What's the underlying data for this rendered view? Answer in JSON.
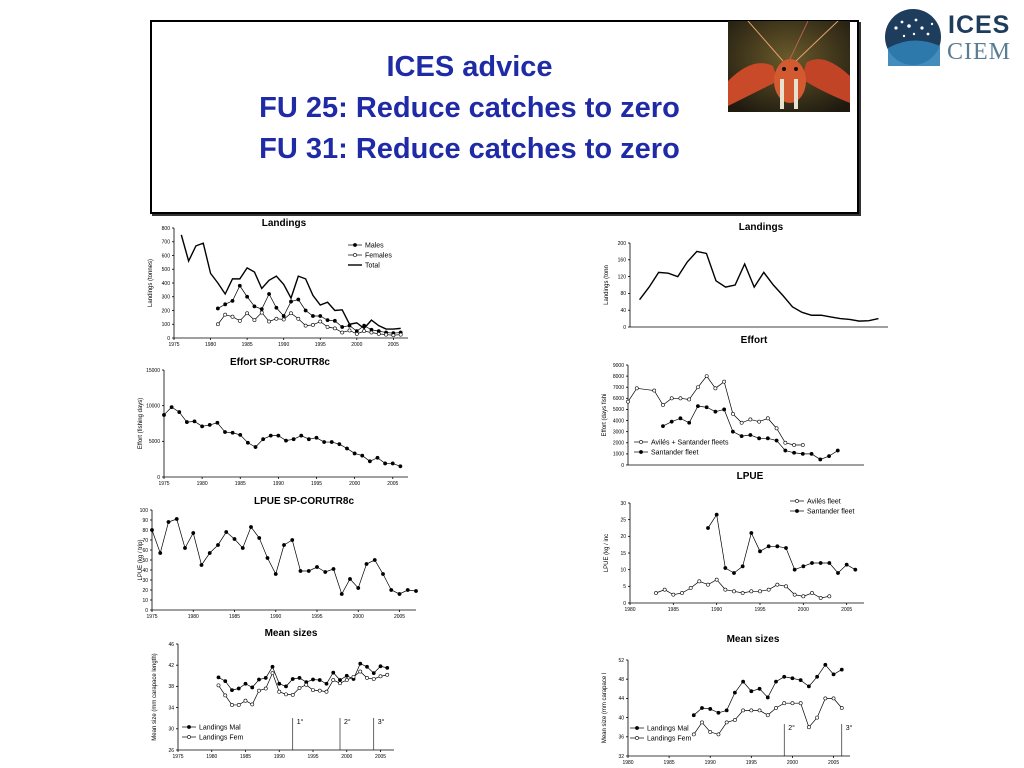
{
  "header": {
    "title_lines": [
      "ICES advice",
      "FU 25: Reduce catches to zero",
      "FU 31: Reduce catches to zero"
    ],
    "logo_top": "ICES",
    "logo_bottom": "CIEM",
    "colors": {
      "title": "#1f2aa6",
      "logo_dark": "#1e3c5c",
      "logo_light": "#5a7d94"
    }
  },
  "chart_data": [
    {
      "id": "landings-fu25",
      "type": "line",
      "title": "Landings",
      "ylabel": "Landings (tonnes)",
      "xlim": [
        1975,
        2007
      ],
      "ylim": [
        0,
        800
      ],
      "xticks": [
        1975,
        1980,
        1985,
        1990,
        1995,
        2000,
        2005
      ],
      "yticks": [
        0,
        100,
        200,
        300,
        400,
        500,
        600,
        700,
        800
      ],
      "legend": "top-right",
      "series": [
        {
          "name": "Males",
          "marker": "filled",
          "line": "thin",
          "x": [
            1981,
            1982,
            1983,
            1984,
            1985,
            1986,
            1987,
            1988,
            1989,
            1990,
            1991,
            1992,
            1993,
            1994,
            1995,
            1996,
            1997,
            1998,
            1999,
            2000,
            2001,
            2002,
            2003,
            2004,
            2005,
            2006
          ],
          "y": [
            215,
            245,
            270,
            380,
            300,
            230,
            210,
            320,
            220,
            160,
            265,
            280,
            200,
            160,
            160,
            130,
            125,
            80,
            90,
            50,
            90,
            60,
            50,
            40,
            35,
            40
          ]
        },
        {
          "name": "Females",
          "marker": "open",
          "line": "thin",
          "x": [
            1981,
            1982,
            1983,
            1984,
            1985,
            1986,
            1987,
            1988,
            1989,
            1990,
            1991,
            1992,
            1993,
            1994,
            1995,
            1996,
            1997,
            1998,
            1999,
            2000,
            2001,
            2002,
            2003,
            2004,
            2005,
            2006
          ],
          "y": [
            100,
            170,
            155,
            125,
            180,
            130,
            185,
            120,
            140,
            135,
            180,
            140,
            90,
            95,
            120,
            80,
            70,
            40,
            55,
            30,
            50,
            40,
            30,
            25,
            20,
            25
          ]
        },
        {
          "name": "Total",
          "marker": "none",
          "line": "thick",
          "x": [
            1976,
            1977,
            1978,
            1979,
            1980,
            1981,
            1982,
            1983,
            1984,
            1985,
            1986,
            1987,
            1988,
            1989,
            1990,
            1991,
            1992,
            1993,
            1994,
            1995,
            1996,
            1997,
            1998,
            1999,
            2000,
            2001,
            2002,
            2003,
            2004,
            2005,
            2006
          ],
          "y": [
            750,
            560,
            670,
            690,
            470,
            400,
            320,
            430,
            430,
            510,
            480,
            360,
            420,
            450,
            390,
            290,
            450,
            430,
            310,
            240,
            260,
            200,
            205,
            100,
            110,
            70,
            130,
            90,
            65,
            65,
            70
          ]
        }
      ]
    },
    {
      "id": "effort-fu25",
      "type": "line",
      "title": "Effort  SP-CORUTR8c",
      "ylabel": "Effort (fishing days)",
      "xlim": [
        1975,
        2007
      ],
      "ylim": [
        0,
        15000
      ],
      "xticks": [
        1975,
        1980,
        1985,
        1990,
        1995,
        2000,
        2005
      ],
      "yticks": [
        0,
        5000,
        10000,
        15000
      ],
      "series": [
        {
          "name": "",
          "marker": "filled",
          "line": "thin",
          "x": [
            1975,
            1976,
            1977,
            1978,
            1979,
            1980,
            1981,
            1982,
            1983,
            1984,
            1985,
            1986,
            1987,
            1988,
            1989,
            1990,
            1991,
            1992,
            1993,
            1994,
            1995,
            1996,
            1997,
            1998,
            1999,
            2000,
            2001,
            2002,
            2003,
            2004,
            2005,
            2006
          ],
          "y": [
            8700,
            9800,
            9100,
            7700,
            7800,
            7100,
            7300,
            7600,
            6300,
            6200,
            5900,
            4800,
            4200,
            5300,
            5800,
            5800,
            5100,
            5300,
            5800,
            5300,
            5500,
            4900,
            4900,
            4600,
            4000,
            3300,
            3000,
            2200,
            2700,
            1900,
            1900,
            1500
          ]
        }
      ]
    },
    {
      "id": "lpue-fu25",
      "type": "line",
      "title": "LPUE  SP-CORUTR8c",
      "ylabel": "LPUE (kg / trip)",
      "xlim": [
        1975,
        2007
      ],
      "ylim": [
        0,
        100
      ],
      "xticks": [
        1975,
        1980,
        1985,
        1990,
        1995,
        2000,
        2005
      ],
      "yticks": [
        0,
        10,
        20,
        30,
        40,
        50,
        60,
        70,
        80,
        90,
        100
      ],
      "series": [
        {
          "name": "",
          "marker": "filled",
          "line": "thin",
          "x": [
            1975,
            1976,
            1977,
            1978,
            1979,
            1980,
            1981,
            1982,
            1983,
            1984,
            1985,
            1986,
            1987,
            1988,
            1989,
            1990,
            1991,
            1992,
            1993,
            1994,
            1995,
            1996,
            1997,
            1998,
            1999,
            2000,
            2001,
            2002,
            2003,
            2004,
            2005,
            2006,
            2007
          ],
          "y": [
            80,
            57,
            88,
            91,
            62,
            77,
            45,
            57,
            65,
            78,
            71,
            62,
            83,
            72,
            52,
            36,
            65,
            70,
            39,
            39,
            43,
            38,
            41,
            16,
            31,
            22,
            46,
            50,
            36,
            20,
            16,
            20,
            19
          ]
        }
      ]
    },
    {
      "id": "sizes-fu25",
      "type": "line",
      "title": "Mean sizes",
      "ylabel": "Mean size (mm carapace length)",
      "xlim": [
        1975,
        2007
      ],
      "ylim": [
        26,
        46
      ],
      "xticks": [
        1975,
        1980,
        1985,
        1990,
        1995,
        2000,
        2005
      ],
      "yticks": [
        26,
        30,
        34,
        38,
        42,
        46
      ],
      "legend": "bottom-left",
      "annotations": [
        {
          "x": 1992,
          "text": "1°"
        },
        {
          "x": 1999,
          "text": "2°"
        },
        {
          "x": 2004,
          "text": "3°"
        }
      ],
      "series": [
        {
          "name": "Landings Mal",
          "marker": "filled",
          "line": "thin",
          "x": [
            1981,
            1982,
            1983,
            1984,
            1985,
            1986,
            1987,
            1988,
            1989,
            1990,
            1991,
            1992,
            1993,
            1994,
            1995,
            1996,
            1997,
            1998,
            1999,
            2000,
            2001,
            2002,
            2003,
            2004,
            2005,
            2006
          ],
          "y": [
            39.7,
            39,
            37.3,
            37.6,
            38.5,
            37.8,
            39.3,
            39.6,
            41.7,
            38.5,
            38,
            39.4,
            39.6,
            38.8,
            39.3,
            39.2,
            38.5,
            40.6,
            39.2,
            40,
            39.4,
            42.3,
            41.7,
            40.5,
            41.8,
            41.5
          ]
        },
        {
          "name": "Landings Fem",
          "marker": "open",
          "line": "thin",
          "x": [
            1981,
            1982,
            1983,
            1984,
            1985,
            1986,
            1987,
            1988,
            1989,
            1990,
            1991,
            1992,
            1993,
            1994,
            1995,
            1996,
            1997,
            1998,
            1999,
            2000,
            2001,
            2002,
            2003,
            2004,
            2005,
            2006
          ],
          "y": [
            38.2,
            36.3,
            34.5,
            34.5,
            35.3,
            34.6,
            37.2,
            37.6,
            40.5,
            37,
            36.5,
            36.4,
            37.7,
            38.3,
            37.3,
            37.2,
            37,
            39.2,
            38.6,
            39.2,
            39.8,
            40.8,
            39.6,
            39.4,
            39.9,
            40.2
          ]
        }
      ]
    },
    {
      "id": "landings-fu31",
      "type": "line",
      "title": "Landings",
      "ylabel": "Landings (tonn",
      "xlim": [
        1983,
        2010
      ],
      "ylim": [
        0,
        200
      ],
      "xticks": [],
      "yticks": [
        0,
        40,
        80,
        120,
        160,
        200
      ],
      "series": [
        {
          "name": "",
          "marker": "none",
          "line": "thick",
          "x": [
            1984,
            1985,
            1986,
            1987,
            1988,
            1989,
            1990,
            1991,
            1992,
            1993,
            1994,
            1995,
            1996,
            1997,
            1998,
            1999,
            2000,
            2001,
            2002,
            2003,
            2004,
            2005,
            2006,
            2007,
            2008,
            2009
          ],
          "y": [
            65,
            95,
            130,
            128,
            120,
            155,
            180,
            175,
            110,
            95,
            100,
            150,
            95,
            130,
            100,
            75,
            48,
            35,
            28,
            28,
            24,
            20,
            18,
            14,
            15,
            20
          ]
        }
      ]
    },
    {
      "id": "effort-fu31",
      "type": "line",
      "title": "Effort",
      "ylabel": "Effort (days fishi",
      "xlim": [
        1983,
        2010
      ],
      "ylim": [
        0,
        9000
      ],
      "xticks": [],
      "yticks": [
        0,
        1000,
        2000,
        3000,
        4000,
        5000,
        6000,
        7000,
        8000,
        9000
      ],
      "legend": "bottom-left",
      "series": [
        {
          "name": "Avilés + Santander fleets",
          "marker": "open",
          "line": "thin",
          "x": [
            1983,
            1984,
            1986,
            1987,
            1988,
            1989,
            1990,
            1991,
            1992,
            1993,
            1994,
            1995,
            1996,
            1997,
            1998,
            1999,
            2000,
            2001,
            2002,
            2003
          ],
          "y": [
            5700,
            6900,
            6700,
            5400,
            6000,
            6000,
            5900,
            7000,
            8000,
            6900,
            7500,
            4600,
            3800,
            4100,
            3900,
            4200,
            3300,
            2000,
            1800,
            1800
          ]
        },
        {
          "name": "Santander fleet",
          "marker": "filled",
          "line": "thin",
          "x": [
            1987,
            1988,
            1989,
            1990,
            1991,
            1992,
            1993,
            1994,
            1995,
            1996,
            1997,
            1998,
            1999,
            2000,
            2001,
            2002,
            2003,
            2004,
            2005,
            2006,
            2007
          ],
          "y": [
            3500,
            3900,
            4200,
            3800,
            5300,
            5200,
            4800,
            5000,
            3000,
            2600,
            2700,
            2400,
            2400,
            2200,
            1300,
            1100,
            1000,
            1000,
            500,
            800,
            1300
          ]
        }
      ]
    },
    {
      "id": "lpue-fu31",
      "type": "line",
      "title": "LPUE",
      "ylabel": "LPUE (kg / inc",
      "xlim": [
        1980,
        2007
      ],
      "ylim": [
        0,
        30
      ],
      "xticks": [
        1980,
        1985,
        1990,
        1995,
        2000,
        2005
      ],
      "yticks": [
        0,
        5,
        10,
        15,
        20,
        25,
        30
      ],
      "legend": "top-right",
      "series": [
        {
          "name": "Avilés fleet",
          "marker": "open",
          "line": "thin",
          "x": [
            1983,
            1984,
            1985,
            1986,
            1987,
            1988,
            1989,
            1990,
            1991,
            1992,
            1993,
            1994,
            1995,
            1996,
            1997,
            1998,
            1999,
            2000,
            2001,
            2002,
            2003
          ],
          "y": [
            3,
            4,
            2.5,
            3,
            4.5,
            6.5,
            5.5,
            7,
            4,
            3.5,
            3,
            3.5,
            3.5,
            4,
            5.5,
            5,
            2.5,
            2,
            3,
            1.5,
            2
          ]
        },
        {
          "name": "Santander fleet",
          "marker": "filled",
          "line": "thin",
          "x": [
            1989,
            1990,
            1991,
            1992,
            1993,
            1994,
            1995,
            1996,
            1997,
            1998,
            1999,
            2000,
            2001,
            2002,
            2003,
            2004,
            2005,
            2006
          ],
          "y": [
            22.5,
            26.5,
            10.5,
            9,
            11,
            21,
            15.5,
            17,
            17,
            16.5,
            10,
            11,
            12,
            12,
            12,
            9,
            11.5,
            10
          ]
        }
      ]
    },
    {
      "id": "sizes-fu31",
      "type": "line",
      "title": "Mean sizes",
      "ylabel": "Mean size (mm carapace l",
      "xlim": [
        1980,
        2007
      ],
      "ylim": [
        32,
        52
      ],
      "xticks": [
        1980,
        1985,
        1990,
        1995,
        2000,
        2005
      ],
      "yticks": [
        32,
        36,
        40,
        44,
        48,
        52
      ],
      "legend": "bottom-left",
      "annotations": [
        {
          "x": 1999,
          "text": "2°"
        },
        {
          "x": 2006,
          "text": "3°"
        }
      ],
      "series": [
        {
          "name": "Landings Mal",
          "marker": "filled",
          "line": "thin",
          "x": [
            1988,
            1989,
            1990,
            1991,
            1992,
            1993,
            1994,
            1995,
            1996,
            1997,
            1998,
            1999,
            2000,
            2001,
            2002,
            2003,
            2004,
            2005,
            2006
          ],
          "y": [
            40.5,
            42,
            41.8,
            41,
            41.5,
            45.2,
            47.5,
            45.5,
            46,
            44.2,
            47.5,
            48.5,
            48.2,
            47.8,
            46.5,
            48.5,
            51,
            49,
            50
          ]
        },
        {
          "name": "Landings Fem",
          "marker": "open",
          "line": "thin",
          "x": [
            1988,
            1989,
            1990,
            1991,
            1992,
            1993,
            1994,
            1995,
            1996,
            1997,
            1998,
            1999,
            2000,
            2001,
            2002,
            2003,
            2004,
            2005,
            2006
          ],
          "y": [
            36.5,
            39,
            37,
            36.5,
            39,
            39.5,
            41.5,
            41.5,
            41.5,
            40.5,
            42,
            43,
            43,
            43,
            38,
            40,
            44,
            44,
            42
          ]
        }
      ]
    }
  ]
}
